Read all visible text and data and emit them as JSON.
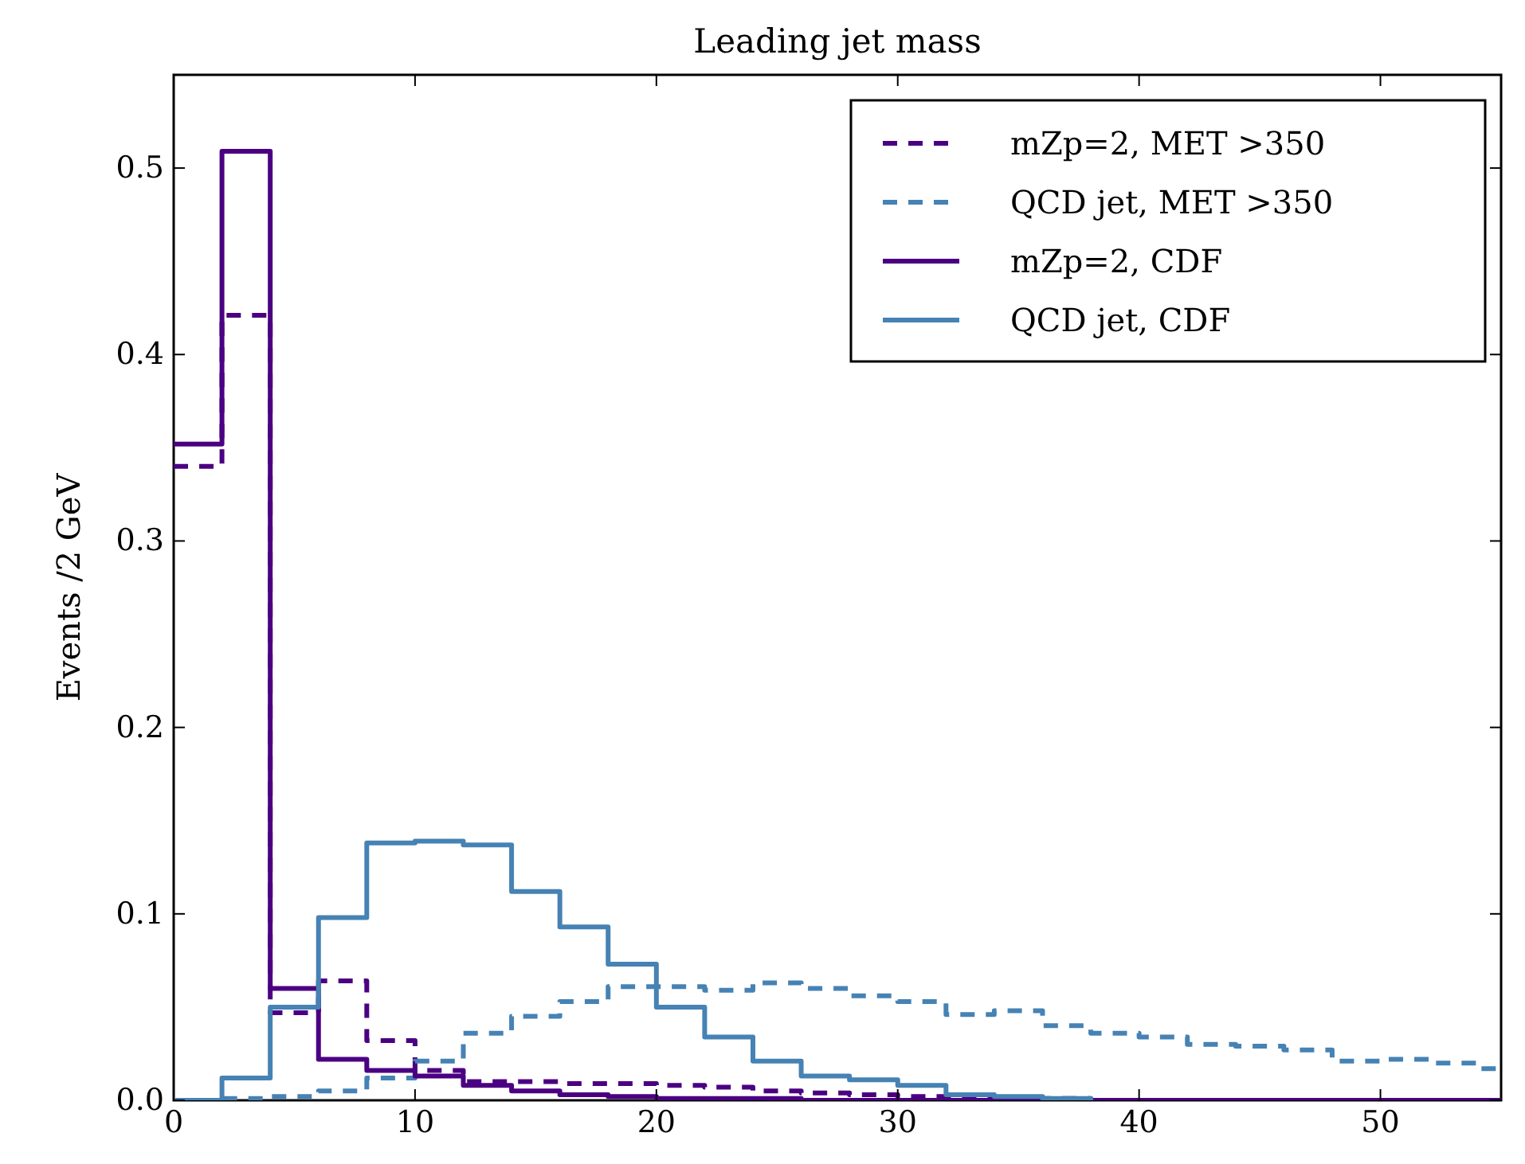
{
  "chart_data": {
    "type": "step",
    "title": "Leading jet mass",
    "ylabel": "Events /2 GeV",
    "x": [
      0,
      2,
      4,
      6,
      8,
      10,
      12,
      14,
      16,
      18,
      20,
      22,
      24,
      26,
      28,
      30,
      32,
      34,
      36,
      38,
      40,
      42,
      44,
      46,
      48,
      50,
      52,
      54
    ],
    "series": [
      {
        "name": "mZp=2, MET >350",
        "color": "#4b0082",
        "line_style": "dashed",
        "values": [
          0.34,
          0.421,
          0.047,
          0.064,
          0.032,
          0.016,
          0.01,
          0.01,
          0.009,
          0.009,
          0.008,
          0.007,
          0.005,
          0.004,
          0.003,
          0.002,
          0.002,
          0.001,
          0.001,
          0,
          null,
          null,
          null,
          null,
          null,
          null,
          null,
          null
        ]
      },
      {
        "name": "QCD jet, MET >350",
        "color": "#4682b4",
        "line_style": "dashed",
        "values": [
          0,
          0.001,
          0.002,
          0.005,
          0.012,
          0.021,
          0.036,
          0.045,
          0.053,
          0.061,
          0.061,
          0.059,
          0.063,
          0.06,
          0.056,
          0.053,
          0.046,
          0.048,
          0.04,
          0.036,
          0.034,
          0.03,
          0.029,
          0.027,
          0.021,
          0.022,
          0.02,
          0.017
        ]
      },
      {
        "name": "mZp=2, CDF",
        "color": "#4b0082",
        "line_style": "solid",
        "values": [
          0.352,
          0.509,
          0.06,
          0.022,
          0.016,
          0.013,
          0.008,
          0.005,
          0.003,
          0.002,
          0.001,
          0.001,
          0.001,
          0,
          0,
          0,
          0,
          0,
          0,
          0,
          0,
          0,
          0,
          0,
          0,
          0,
          0,
          0
        ]
      },
      {
        "name": "QCD jet, CDF",
        "color": "#4682b4",
        "line_style": "solid",
        "values": [
          0,
          0.012,
          0.05,
          0.098,
          0.138,
          0.139,
          0.137,
          0.112,
          0.093,
          0.073,
          0.05,
          0.034,
          0.021,
          0.013,
          0.011,
          0.008,
          0.003,
          0.002,
          0.001,
          0,
          null,
          null,
          null,
          null,
          null,
          null,
          null,
          null
        ]
      }
    ],
    "xlim": [
      0,
      55
    ],
    "ylim": [
      0,
      0.55
    ],
    "xticks": [
      0,
      10,
      20,
      30,
      40,
      50
    ],
    "yticks": [
      {
        "value": 0,
        "label": "0.0"
      },
      {
        "value": 0.1,
        "label": "0.1"
      },
      {
        "value": 0.2,
        "label": "0.2"
      },
      {
        "value": 0.3,
        "label": "0.3"
      },
      {
        "value": 0.4,
        "label": "0.4"
      },
      {
        "value": 0.5,
        "label": "0.5"
      }
    ],
    "legend": "top right"
  }
}
